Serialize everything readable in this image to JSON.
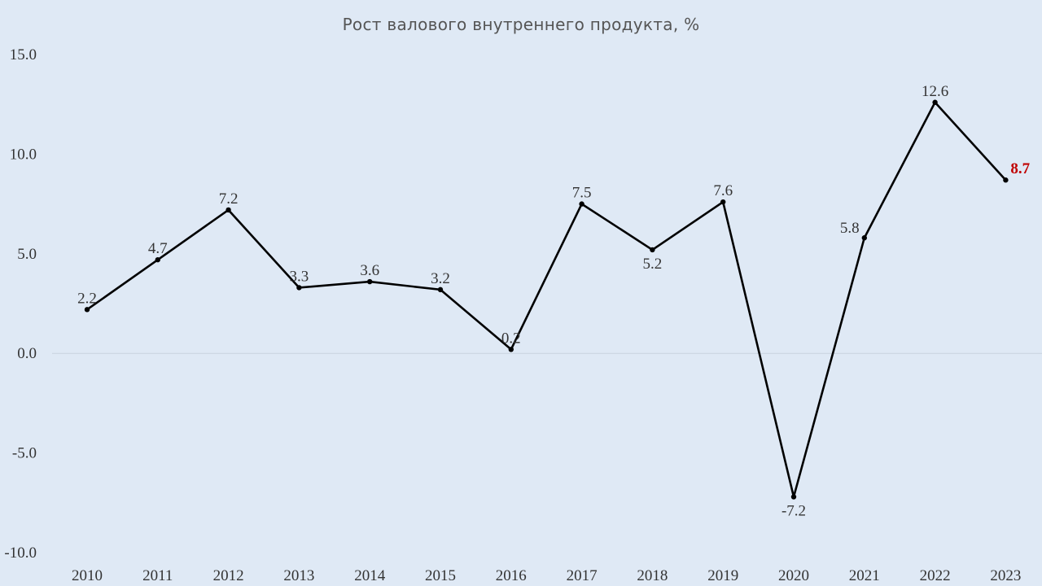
{
  "chart_data": {
    "type": "line",
    "title": "Рост валового внутреннего продукта, %",
    "xlabel": "",
    "ylabel": "",
    "categories": [
      "2010",
      "2011",
      "2012",
      "2013",
      "2014",
      "2015",
      "2016",
      "2017",
      "2018",
      "2019",
      "2020",
      "2021",
      "2022",
      "2023"
    ],
    "series": [
      {
        "values": [
          2.2,
          4.7,
          7.2,
          3.3,
          3.6,
          3.2,
          0.2,
          7.5,
          5.2,
          7.6,
          -7.2,
          5.8,
          12.6,
          8.7
        ],
        "data_labels": [
          "2.2",
          "4.7",
          "7.2",
          "3.3",
          "3.6",
          "3.2",
          "0.2",
          "7.5",
          "5.2",
          "7.6",
          "-7.2",
          "5.8",
          "12.6",
          "8.7"
        ],
        "color": "#000000"
      }
    ],
    "ylim": [
      -10,
      15
    ],
    "y_ticks": [
      -10,
      -5,
      0,
      5,
      10,
      15
    ],
    "y_tick_labels": [
      "-10.0",
      "-5.0",
      "0.0",
      "5.0",
      "10.0",
      "15.0"
    ],
    "grid": false,
    "zero_line": true,
    "highlight": {
      "index": 13,
      "color": "#c00000"
    },
    "label_placement": [
      "above",
      "above",
      "above",
      "above",
      "above",
      "above",
      "above",
      "above",
      "below",
      "above",
      "below",
      "left",
      "above",
      "right"
    ],
    "colors": {
      "background": "#dfe9f5",
      "line": "#000000",
      "text": "#333333",
      "zero_line": "#c9d3de",
      "highlight": "#c00000"
    }
  }
}
